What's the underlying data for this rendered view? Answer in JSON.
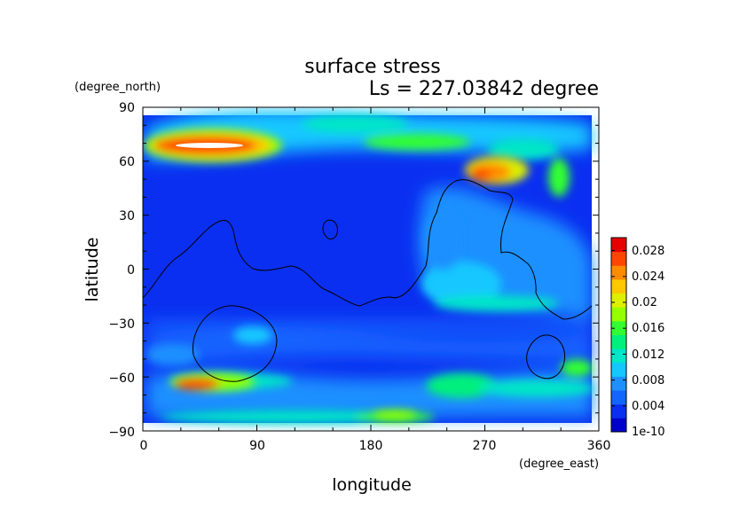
{
  "chart_data": {
    "type": "heatmap",
    "title": "surface stress",
    "subtitle": "Ls = 227.03842 degree",
    "xlabel": "longitude",
    "ylabel": "latitude",
    "xunit": "(degree_east)",
    "yunit": "(degree_north)",
    "xlim": [
      0,
      360
    ],
    "ylim": [
      -90,
      90
    ],
    "xticks": [
      "0",
      "90",
      "180",
      "270",
      "360"
    ],
    "yticks": [
      "90",
      "60",
      "30",
      "0",
      "−30",
      "−60",
      "−90"
    ],
    "colorbar": {
      "labels": [
        "0.028",
        "0.024",
        "0.02",
        "0.016",
        "0.012",
        "0.008",
        "0.004",
        "1e-10"
      ],
      "values": [
        0.028,
        0.024,
        0.02,
        0.016,
        0.012,
        0.008,
        0.004,
        0.0
      ],
      "max": 0.03,
      "colors": [
        "#0000cd",
        "#0a2ff0",
        "#1464ff",
        "#1e90ff",
        "#14c8ff",
        "#00e6c8",
        "#00f07d",
        "#32ff32",
        "#96ff00",
        "#dcf000",
        "#ffc800",
        "#ff8c00",
        "#ff4600",
        "#e60000"
      ]
    },
    "features": [
      {
        "name": "",
        "lon": 45,
        "lat": 70,
        "value": 0.03
      },
      {
        "name": "",
        "lon": 265,
        "lat": 52,
        "value": 0.026
      },
      {
        "name": "",
        "lon": 30,
        "lat": -63,
        "value": 0.024
      },
      {
        "name": "",
        "lon": 200,
        "lat": -81,
        "value": 0.016
      }
    ]
  }
}
